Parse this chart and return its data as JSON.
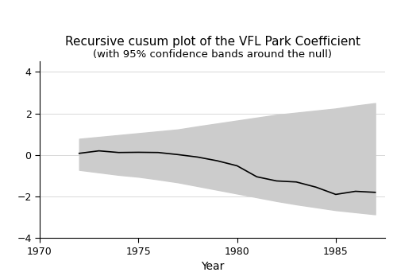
{
  "title_line1": "Recursive cusum plot of the VFL Park Coefficient",
  "title_line2": "(with 95% confidence bands around the null)",
  "xlabel": "Year",
  "xlim": [
    1970,
    1987.5
  ],
  "ylim": [
    -4,
    4.5
  ],
  "xticks": [
    1970,
    1975,
    1980,
    1985
  ],
  "yticks": [
    -4,
    -2,
    0,
    2,
    4
  ],
  "background_color": "#ffffff",
  "band_color": "#cccccc",
  "line_color": "#000000",
  "grid_color": "#d8d8d8",
  "line_years": [
    1972,
    1973,
    1974,
    1975,
    1976,
    1977,
    1978,
    1979,
    1980,
    1981,
    1982,
    1983,
    1984,
    1985,
    1986,
    1987
  ],
  "line_values": [
    0.08,
    0.2,
    0.12,
    0.13,
    0.12,
    0.02,
    -0.1,
    -0.28,
    -0.52,
    -1.05,
    -1.25,
    -1.3,
    -1.55,
    -1.9,
    -1.75,
    -1.8
  ],
  "band_upper": [
    0.78,
    0.87,
    0.96,
    1.05,
    1.14,
    1.23,
    1.38,
    1.52,
    1.66,
    1.8,
    1.94,
    2.04,
    2.14,
    2.24,
    2.38,
    2.5
  ],
  "band_lower": [
    -0.72,
    -0.84,
    -0.96,
    -1.05,
    -1.18,
    -1.32,
    -1.5,
    -1.68,
    -1.86,
    -2.04,
    -2.22,
    -2.38,
    -2.52,
    -2.66,
    -2.76,
    -2.86
  ],
  "title_fontsize": 11,
  "subtitle_fontsize": 9.5,
  "tick_labelsize": 9
}
